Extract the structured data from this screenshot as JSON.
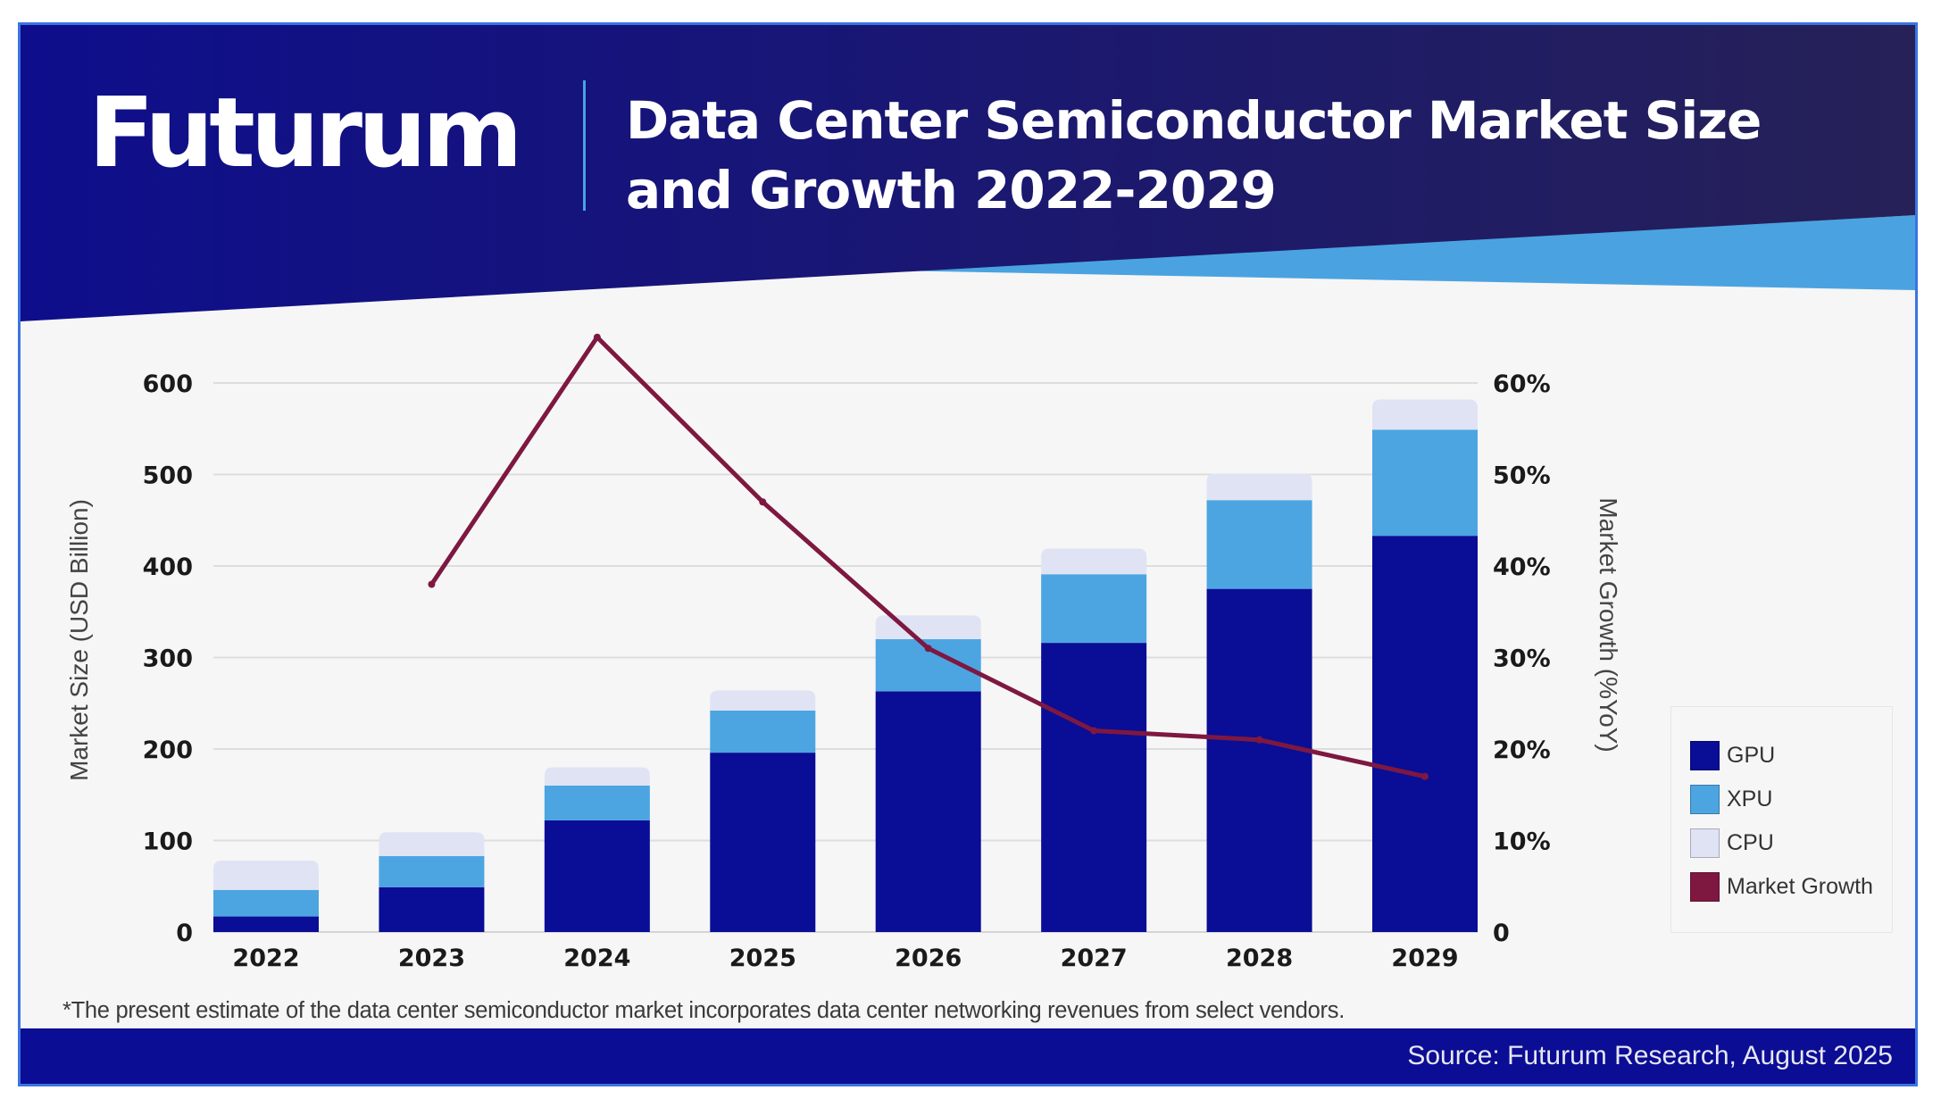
{
  "header": {
    "brand": "Futurum",
    "title_line1": "Data Center Semiconductor Market Size",
    "title_line2": "and Growth 2022-2029"
  },
  "footnote": "*The present estimate of the data center semiconductor market incorporates data center networking revenues from select vendors.",
  "footer": {
    "source": "Source: Futurum Research, August 2025"
  },
  "colors": {
    "header_navy": "#0e0e8c",
    "header_dark": "#262157",
    "accent_light_blue": "#4aa3e0",
    "footer_navy": "#0b0d94",
    "gpu": "#0a0d96",
    "xpu": "#4ca5e1",
    "cpu": "#e0e3f4",
    "growth": "#7e1840",
    "background": "#f6f6f6"
  },
  "chart_data": {
    "type": "bar",
    "stacked": true,
    "title": "Data Center Semiconductor Market Size and Growth 2022-2029",
    "categories": [
      "2022",
      "2023",
      "2024",
      "2025",
      "2026",
      "2027",
      "2028",
      "2029"
    ],
    "series": [
      {
        "name": "GPU",
        "axis": "left",
        "values": [
          17,
          49,
          122,
          196,
          263,
          316,
          375,
          433
        ]
      },
      {
        "name": "XPU",
        "axis": "left",
        "values": [
          29,
          34,
          38,
          46,
          57,
          75,
          97,
          116
        ]
      },
      {
        "name": "CPU",
        "axis": "left",
        "values": [
          32,
          26,
          20,
          22,
          26,
          28,
          29,
          33
        ]
      },
      {
        "name": "Market Growth",
        "type": "line",
        "axis": "right",
        "values": [
          null,
          38,
          65,
          47,
          31,
          22,
          21,
          17
        ]
      }
    ],
    "ylabel": "Market Size (USD Billion)",
    "ylabel_right": "Market Growth (%YoY)",
    "ylim": [
      0,
      600
    ],
    "ylim_right": [
      0,
      60
    ],
    "yticks": [
      "0",
      "100",
      "200",
      "300",
      "400",
      "500",
      "600"
    ],
    "yticks_right": [
      "0",
      "10%",
      "20%",
      "30%",
      "40%",
      "50%",
      "60%"
    ],
    "grid": true,
    "legend": {
      "placement": "right",
      "entries": [
        "GPU",
        "XPU",
        "CPU",
        "Market Growth"
      ]
    }
  }
}
